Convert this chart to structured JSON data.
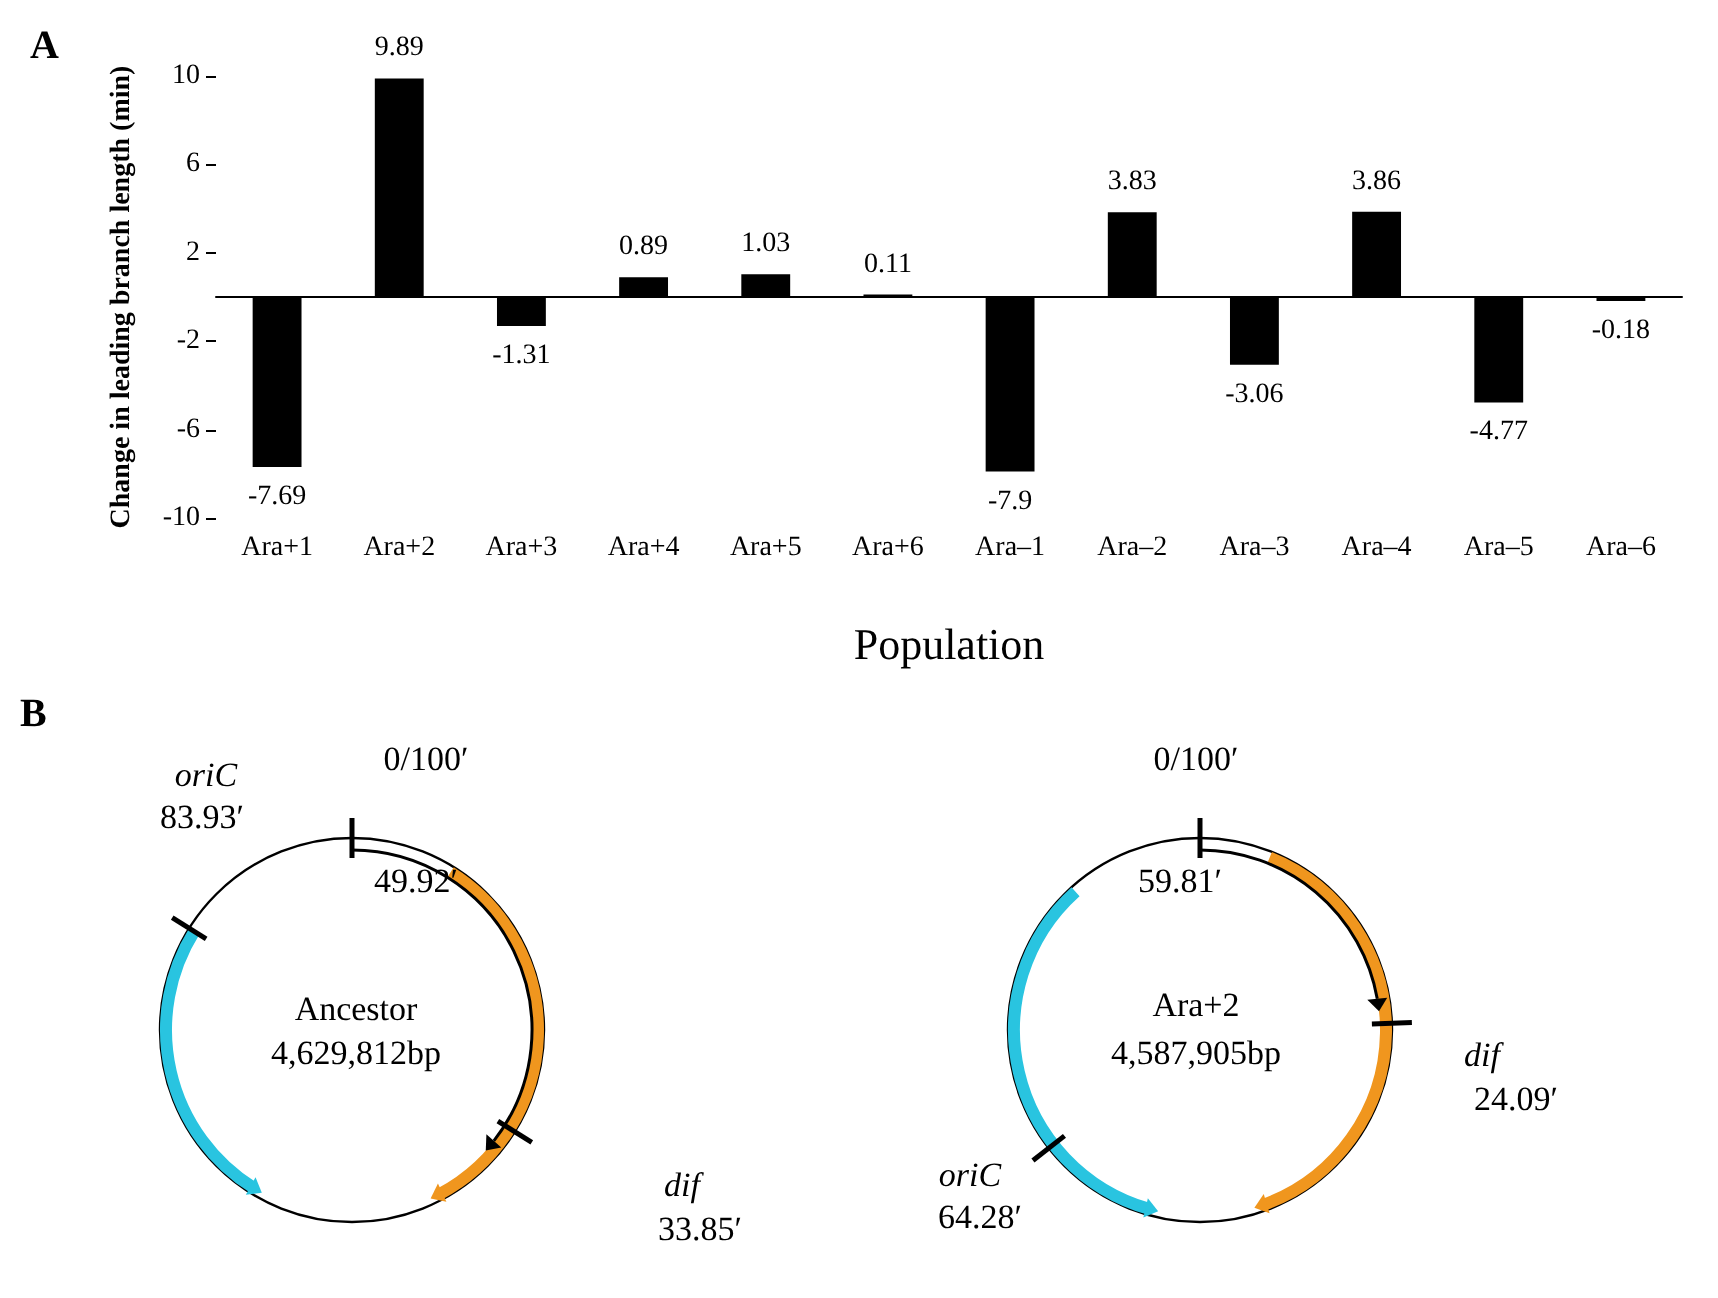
{
  "chart_data": [
    {
      "type": "bar",
      "title": "A",
      "xlabel": "Population",
      "ylabel": "Change in leading branch length (min)",
      "categories": [
        "Ara+1",
        "Ara+2",
        "Ara+3",
        "Ara+4",
        "Ara+5",
        "Ara+6",
        "Ara–1",
        "Ara–2",
        "Ara–3",
        "Ara–4",
        "Ara–5",
        "Ara–6"
      ],
      "values": [
        -7.69,
        9.89,
        -1.31,
        0.89,
        1.03,
        0.11,
        -7.9,
        3.83,
        -3.06,
        3.86,
        -4.77,
        -0.18
      ],
      "color": "#000000",
      "data_labels": true,
      "ylim": [
        -10,
        10
      ],
      "yticks": [
        -10,
        -6,
        -2,
        2,
        6,
        10
      ],
      "grid": false
    },
    {
      "type": "other",
      "title": "B",
      "annotations": [
        "oriC",
        "83.93′",
        "0/100′",
        "49.92′",
        "Ancestor",
        "4,629,812bp",
        "dif",
        "33.85′",
        "0/100′",
        "59.81′",
        "Ara+2",
        "4,587,905bp",
        "dif",
        "24.09′",
        "oriC",
        "64.28′"
      ]
    }
  ]
}
